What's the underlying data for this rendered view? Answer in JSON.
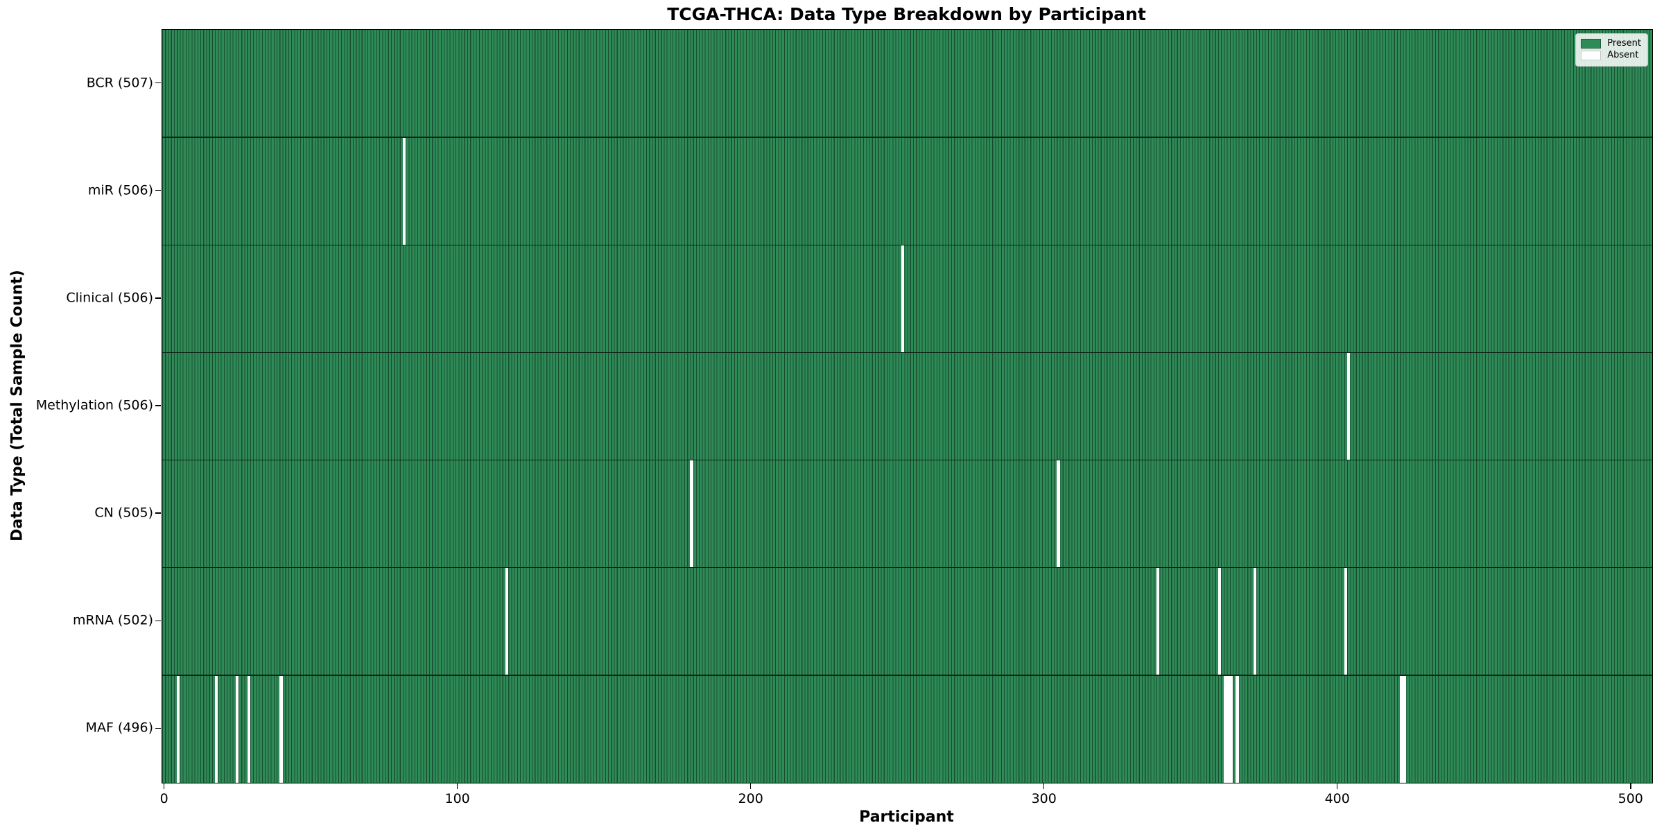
{
  "title": "TCGA-THCA: Data Type Breakdown by Participant",
  "colors": {
    "present": "#2e8b57",
    "present_edge": "#1e5c3a",
    "absent": "#ffffff",
    "row_separator": "#0d2418"
  },
  "chart_data": {
    "type": "heatmap",
    "title": "TCGA-THCA: Data Type Breakdown by Participant",
    "xlabel": "Participant",
    "ylabel": "Data Type (Total Sample Count)",
    "x_ticks": [
      0,
      100,
      200,
      300,
      400,
      500
    ],
    "x_range": [
      0,
      507
    ],
    "n_participants": 507,
    "legend_position": "upper right",
    "legend_items": [
      {
        "label": "Present",
        "color": "#2e8b57"
      },
      {
        "label": "Absent",
        "color": "#ffffff"
      }
    ],
    "rows": [
      {
        "label": "BCR (507)",
        "data_type": "BCR",
        "total": 507,
        "absent_participants": []
      },
      {
        "label": "miR (506)",
        "data_type": "miR",
        "total": 506,
        "absent_participants": [
          82
        ]
      },
      {
        "label": "Clinical (506)",
        "data_type": "Clinical",
        "total": 506,
        "absent_participants": [
          252
        ]
      },
      {
        "label": "Methylation (506)",
        "data_type": "Methylation",
        "total": 506,
        "absent_participants": [
          404
        ]
      },
      {
        "label": "CN (505)",
        "data_type": "CN",
        "total": 505,
        "absent_participants": [
          180,
          305
        ]
      },
      {
        "label": "mRNA (502)",
        "data_type": "mRNA",
        "total": 502,
        "absent_participants": [
          117,
          339,
          360,
          372,
          403
        ]
      },
      {
        "label": "MAF (496)",
        "data_type": "MAF",
        "total": 496,
        "absent_participants": [
          5,
          18,
          25,
          29,
          40,
          362,
          363,
          364,
          366,
          422,
          423
        ]
      }
    ]
  }
}
